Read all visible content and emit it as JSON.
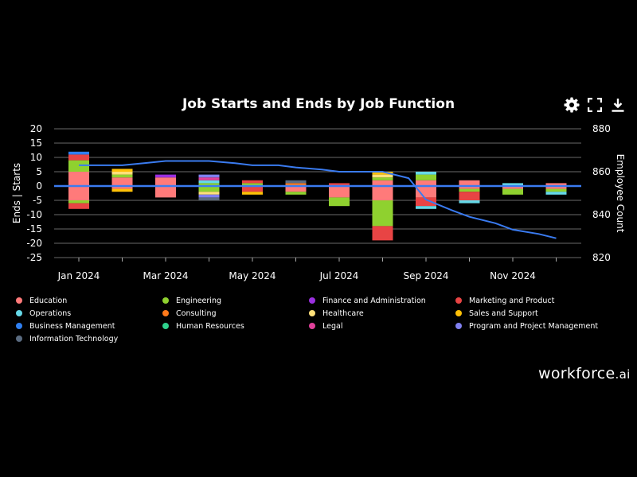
{
  "chart_data": {
    "type": "bar",
    "title": "Job Starts and Ends by Job Function",
    "ylabel": "Ends | Starts",
    "y2label": "Employee Count",
    "ylim": [
      -25,
      20
    ],
    "y2lim": [
      820,
      880
    ],
    "yticks": [
      "20",
      "15",
      "10",
      "5",
      "0",
      "-5",
      "-10",
      "-15",
      "-20",
      "-25"
    ],
    "y2ticks": [
      "880",
      "860",
      "840",
      "820"
    ],
    "xtick_labels": [
      "Jan 2024",
      "Mar 2024",
      "May 2024",
      "Jul 2024",
      "Sep 2024",
      "Nov 2024"
    ],
    "categories": [
      "Jan 2024",
      "Feb 2024",
      "Mar 2024",
      "Apr 2024",
      "May 2024",
      "Jun 2024",
      "Jul 2024",
      "Aug 2024",
      "Sep 2024",
      "Oct 2024",
      "Nov 2024",
      "Dec 2024"
    ],
    "series": [
      {
        "name": "Education",
        "color": "#ff7a7a",
        "starts": [
          5,
          3,
          3,
          0,
          0,
          0,
          0,
          2,
          2,
          2,
          0,
          1
        ],
        "ends": [
          5,
          1,
          4,
          0,
          0,
          2,
          4,
          5,
          4,
          1,
          1,
          1
        ]
      },
      {
        "name": "Engineering",
        "color": "#8fd12f",
        "starts": [
          4,
          1,
          0,
          1,
          1,
          0,
          0,
          1,
          2,
          0,
          0,
          0
        ],
        "ends": [
          1,
          0,
          0,
          2,
          0,
          1,
          3,
          9,
          0,
          1,
          2,
          1
        ]
      },
      {
        "name": "Finance and Administration",
        "color": "#9b30e0",
        "starts": [
          0,
          0,
          1,
          0,
          0,
          0,
          0,
          0,
          0,
          0,
          0,
          0
        ],
        "ends": [
          0,
          0,
          0,
          0,
          0,
          0,
          0,
          0,
          0,
          0,
          0,
          0
        ]
      },
      {
        "name": "Marketing and Product",
        "color": "#e84444",
        "starts": [
          2,
          0,
          0,
          0,
          1,
          0,
          1,
          0,
          0,
          0,
          0,
          0
        ],
        "ends": [
          2,
          0,
          0,
          0,
          2,
          0,
          0,
          5,
          3,
          3,
          0,
          0
        ]
      },
      {
        "name": "Operations",
        "color": "#66d9e8",
        "starts": [
          0,
          0,
          0,
          1,
          0,
          0,
          0,
          0,
          1,
          0,
          1,
          0
        ],
        "ends": [
          0,
          0,
          0,
          0,
          0,
          0,
          0,
          0,
          1,
          1,
          0,
          1
        ]
      },
      {
        "name": "Consulting",
        "color": "#ff7a1a",
        "starts": [
          0,
          0,
          0,
          0,
          0,
          1,
          0,
          0,
          0,
          0,
          0,
          0
        ],
        "ends": [
          0,
          0,
          0,
          0,
          0,
          0,
          0,
          0,
          0,
          0,
          0,
          0
        ]
      },
      {
        "name": "Healthcare",
        "color": "#ffe07a",
        "starts": [
          0,
          1,
          0,
          0,
          0,
          0,
          0,
          1,
          0,
          0,
          0,
          0
        ],
        "ends": [
          0,
          0,
          0,
          1,
          0,
          0,
          0,
          0,
          0,
          0,
          0,
          0
        ]
      },
      {
        "name": "Sales and Support",
        "color": "#ffc107",
        "starts": [
          0,
          1,
          0,
          0,
          0,
          0,
          0,
          1,
          0,
          0,
          0,
          0
        ],
        "ends": [
          0,
          1,
          0,
          0,
          1,
          0,
          0,
          0,
          0,
          0,
          0,
          0
        ]
      },
      {
        "name": "Business Management",
        "color": "#2f7ff0",
        "starts": [
          1,
          0,
          0,
          0,
          0,
          0,
          0,
          0,
          0,
          0,
          0,
          0
        ],
        "ends": [
          0,
          0,
          0,
          0,
          0,
          0,
          0,
          0,
          0,
          0,
          0,
          0
        ]
      },
      {
        "name": "Human Resources",
        "color": "#2ed18c",
        "starts": [
          0,
          0,
          0,
          0,
          0,
          0,
          0,
          0,
          0,
          0,
          0,
          0
        ],
        "ends": [
          0,
          0,
          0,
          0,
          0,
          0,
          0,
          0,
          0,
          0,
          0,
          0
        ]
      },
      {
        "name": "Legal",
        "color": "#e0409a",
        "starts": [
          0,
          0,
          0,
          1,
          0,
          0,
          0,
          0,
          0,
          0,
          0,
          0
        ],
        "ends": [
          0,
          0,
          0,
          0,
          0,
          0,
          0,
          0,
          0,
          0,
          0,
          0
        ]
      },
      {
        "name": "Program and Project Management",
        "color": "#8080f0",
        "starts": [
          0,
          0,
          0,
          1,
          0,
          0,
          0,
          0,
          0,
          0,
          0,
          0
        ],
        "ends": [
          0,
          0,
          0,
          1,
          0,
          0,
          0,
          0,
          0,
          0,
          0,
          0
        ]
      },
      {
        "name": "Information Technology",
        "color": "#5a6b80",
        "starts": [
          0,
          0,
          0,
          0,
          0,
          1,
          0,
          0,
          0,
          0,
          0,
          0
        ],
        "ends": [
          0,
          0,
          0,
          1,
          0,
          0,
          0,
          0,
          0,
          0,
          0,
          0
        ]
      }
    ],
    "employee_count": {
      "name": "Employee Count",
      "color": "#3a7bf0",
      "x": [
        0,
        0.6,
        1,
        1.5,
        2,
        2.6,
        3,
        3.6,
        4,
        4.6,
        5,
        5.6,
        6,
        6.6,
        7,
        7.6,
        8,
        8.6,
        9,
        9.6,
        10,
        10.6,
        11
      ],
      "values": [
        863,
        863,
        863,
        864,
        865,
        865,
        865,
        864,
        863,
        863,
        862,
        861,
        860,
        860,
        860,
        857,
        847,
        842,
        839,
        836,
        833,
        831,
        829
      ]
    },
    "legend_position": "bottom"
  },
  "brand": {
    "name": "workforce",
    "suffix": ".ai"
  },
  "toolbar": {
    "settings_icon": "gear-icon",
    "fullscreen_icon": "expand-icon",
    "download_icon": "download-icon"
  }
}
